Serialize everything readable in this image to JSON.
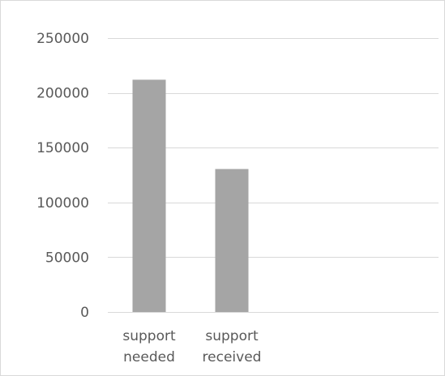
{
  "chart_data": {
    "type": "bar",
    "title": "",
    "xlabel": "",
    "ylabel": "",
    "categories": [
      [
        "support",
        "needed"
      ],
      [
        "support",
        "received"
      ]
    ],
    "values": [
      212000,
      130500
    ],
    "ylim": [
      0,
      250000
    ],
    "yticks": [
      "0",
      "50000",
      "100000",
      "150000",
      "200000",
      "250000"
    ],
    "ytick_values": [
      0,
      50000,
      100000,
      150000,
      200000,
      250000
    ],
    "slot_count": 4,
    "grid": true,
    "legend": "none",
    "colors": {
      "bar": "#a5a5a5",
      "grid": "#d9d9d9",
      "text": "#595959",
      "frame": "#d9d9d9"
    }
  }
}
